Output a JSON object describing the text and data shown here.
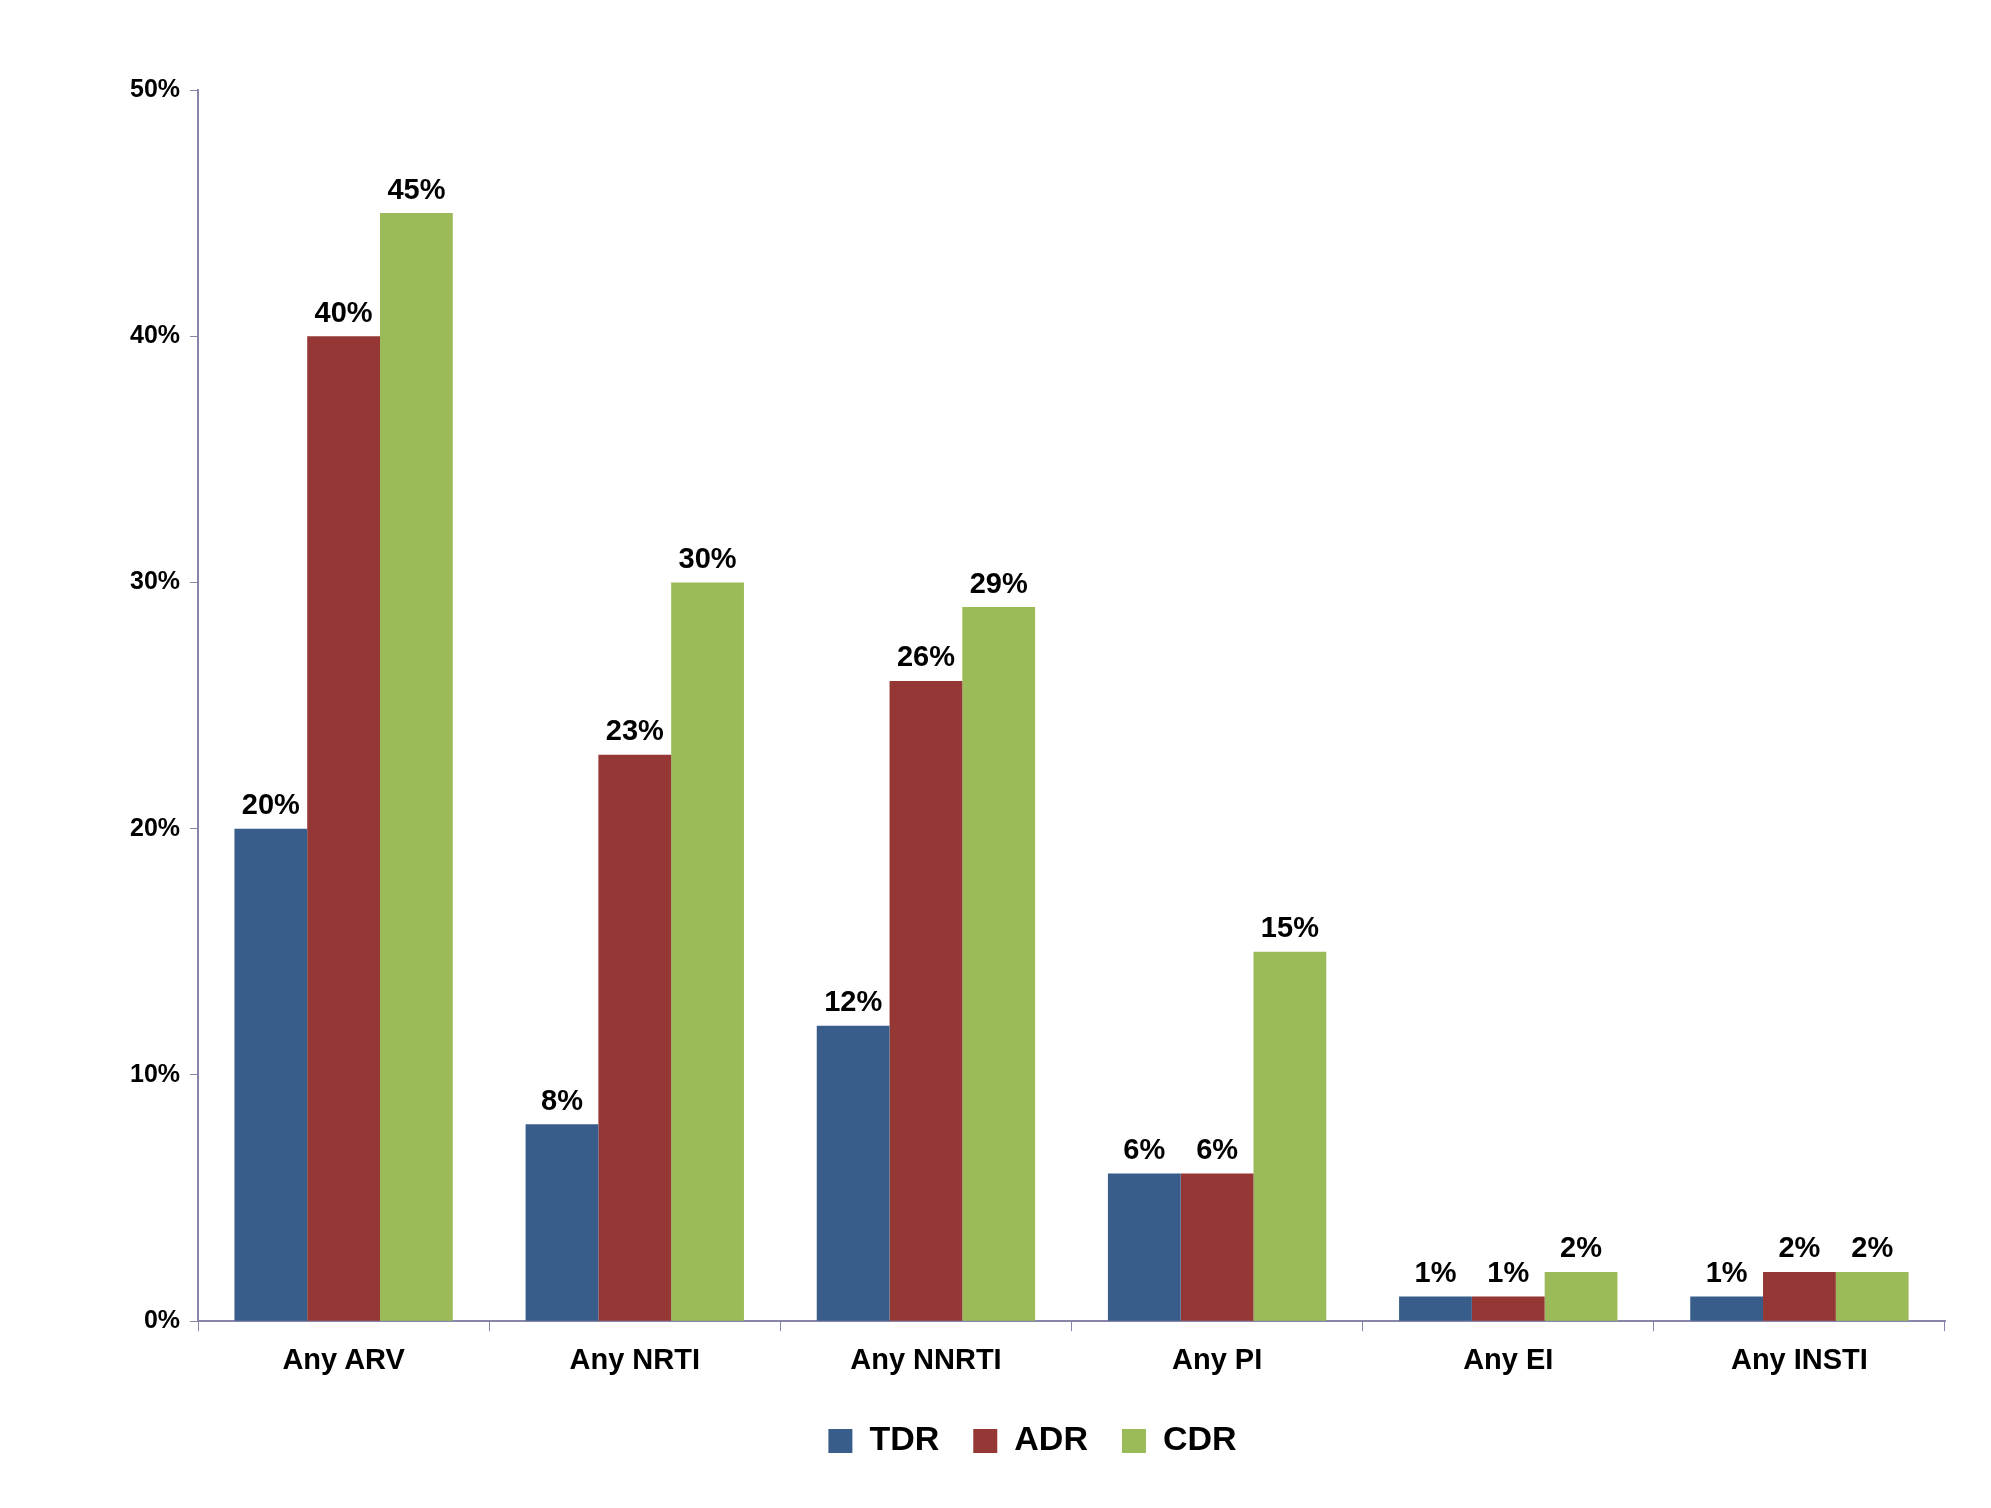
{
  "chart_data": {
    "type": "bar",
    "categories": [
      "Any ARV",
      "Any NRTI",
      "Any NNRTI",
      "Any PI",
      "Any EI",
      "Any INSTI"
    ],
    "series": [
      {
        "name": "TDR",
        "color": "#385d8a",
        "values": [
          20,
          8,
          12,
          6,
          1,
          1
        ],
        "value_labels": [
          "20%",
          "8%",
          "12%",
          "6%",
          "1%",
          "1%"
        ]
      },
      {
        "name": "ADR",
        "color": "#953735",
        "values": [
          40,
          23,
          26,
          6,
          1,
          2
        ],
        "value_labels": [
          "40%",
          "23%",
          "26%",
          "6%",
          "1%",
          "2%"
        ]
      },
      {
        "name": "CDR",
        "color": "#9bbb59",
        "values": [
          45,
          30,
          29,
          15,
          2,
          2
        ],
        "value_labels": [
          "45%",
          "30%",
          "29%",
          "15%",
          "2%",
          "2%"
        ]
      }
    ],
    "ylim": [
      0,
      50
    ],
    "yticks": [
      {
        "value": 0,
        "label": "0%"
      },
      {
        "value": 10,
        "label": "10%"
      },
      {
        "value": 20,
        "label": "20%"
      },
      {
        "value": 30,
        "label": "30%"
      },
      {
        "value": 40,
        "label": "40%"
      },
      {
        "value": 50,
        "label": "50%"
      }
    ],
    "grid": false,
    "legend": "bottom"
  }
}
